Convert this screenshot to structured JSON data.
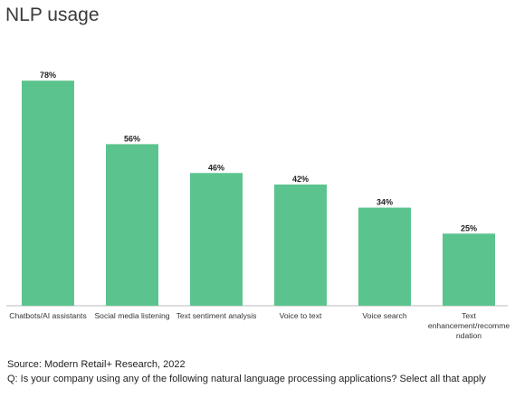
{
  "title": "NLP usage",
  "chart_data": {
    "type": "bar",
    "title": "NLP usage",
    "categories": [
      "Chatbots/AI assistants",
      "Social media listening",
      "Text sentiment analysis",
      "Voice to text",
      "Voice search",
      "Text enhancement/recommendation"
    ],
    "category_label_lines": [
      [
        "Chatbots/AI assistants"
      ],
      [
        "Social media listening"
      ],
      [
        "Text sentiment analysis"
      ],
      [
        "Voice to text"
      ],
      [
        "Voice search"
      ],
      [
        "Text",
        "enhancement/recomme",
        "ndation"
      ]
    ],
    "values": [
      78,
      56,
      46,
      42,
      34,
      25
    ],
    "value_labels": [
      "78%",
      "56%",
      "46%",
      "42%",
      "34%",
      "25%"
    ],
    "unit": "%",
    "ylim": [
      0,
      80
    ],
    "grid": false,
    "bar_color": "#5bc48e",
    "axis_color": "#bbbbbb"
  },
  "footer": {
    "source": "Source: Modern Retail+ Research, 2022",
    "question": "Q: Is your company using any of the following natural language processing applications? Select all that apply"
  }
}
